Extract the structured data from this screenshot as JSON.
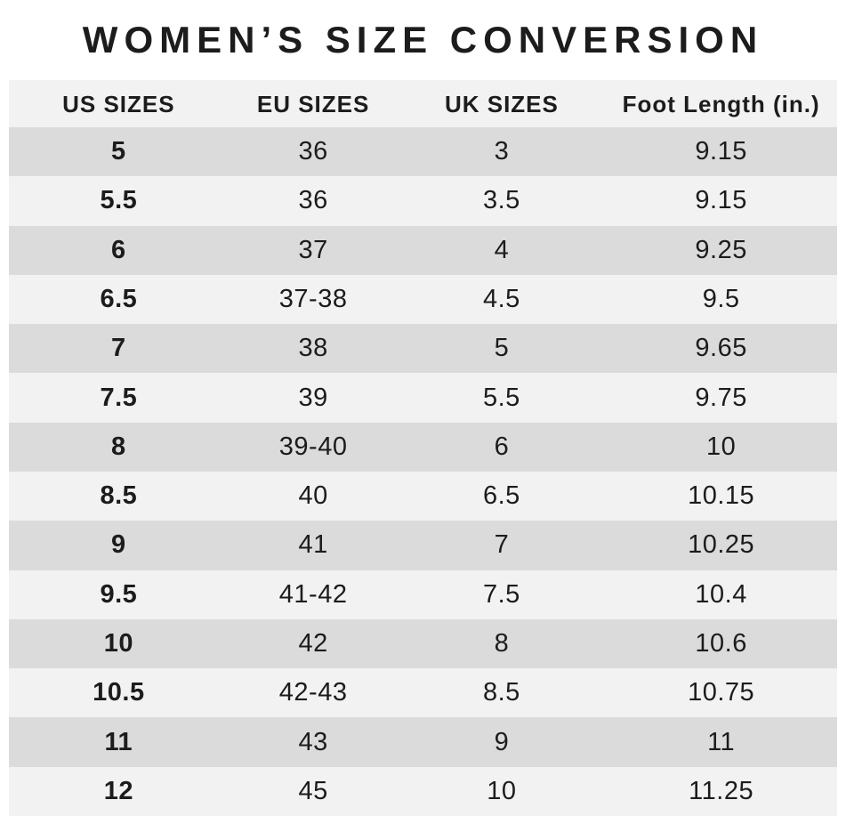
{
  "chart_data": {
    "type": "table",
    "title": "WOMEN’S SIZE CONVERSION",
    "columns": [
      "US SIZES",
      "EU SIZES",
      "UK SIZES",
      "Foot Length (in.)"
    ],
    "rows": [
      [
        "5",
        "36",
        "3",
        "9.15"
      ],
      [
        "5.5",
        "36",
        "3.5",
        "9.15"
      ],
      [
        "6",
        "37",
        "4",
        "9.25"
      ],
      [
        "6.5",
        "37-38",
        "4.5",
        "9.5"
      ],
      [
        "7",
        "38",
        "5",
        "9.65"
      ],
      [
        "7.5",
        "39",
        "5.5",
        "9.75"
      ],
      [
        "8",
        "39-40",
        "6",
        "10"
      ],
      [
        "8.5",
        "40",
        "6.5",
        "10.15"
      ],
      [
        "9",
        "41",
        "7",
        "10.25"
      ],
      [
        "9.5",
        "41-42",
        "7.5",
        "10.4"
      ],
      [
        "10",
        "42",
        "8",
        "10.6"
      ],
      [
        "10.5",
        "42-43",
        "8.5",
        "10.75"
      ],
      [
        "11",
        "43",
        "9",
        "11"
      ],
      [
        "12",
        "45",
        "10",
        "11.25"
      ]
    ],
    "layout": {
      "row_striping": "alternating, first data row dark",
      "bold_column": "US SIZES",
      "legend": "none",
      "grid": "off"
    }
  },
  "colors": {
    "page_background": "#ffffff",
    "header_background": "#f1f2f1",
    "row_light": "#f1f2f1",
    "row_dark": "#dadbda",
    "text": "#1c1c1c"
  }
}
